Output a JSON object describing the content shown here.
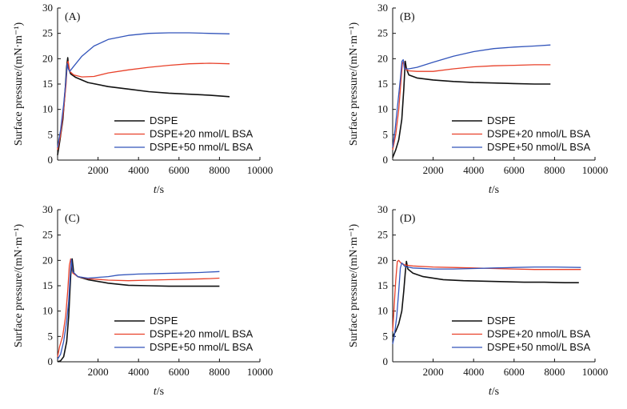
{
  "chart_data": [
    {
      "type": "line",
      "panel": "(A)",
      "xlabel": "t/s",
      "xlabel_italic": "t",
      "xlabel_unit": "/s",
      "ylabel": "Surface pressure/(mN·m⁻¹)",
      "xlim": [
        0,
        10000
      ],
      "ylim": [
        0,
        30
      ],
      "xticks": [
        0,
        2000,
        4000,
        6000,
        8000,
        10000
      ],
      "yticks": [
        0,
        5,
        10,
        15,
        20,
        25,
        30
      ],
      "xtick_labels": [
        "2000",
        "4000",
        "6000",
        "8000",
        "10000"
      ],
      "ytick_labels": [
        "0",
        "5",
        "10",
        "15",
        "20",
        "25",
        "30"
      ],
      "legend_position": "bottom-right",
      "series": [
        {
          "name": "DSPE",
          "color": "#111111",
          "x": [
            0,
            120,
            260,
            380,
            450,
            500,
            550,
            650,
            900,
            1500,
            2500,
            3500,
            4500,
            5500,
            6500,
            7500,
            8500
          ],
          "y": [
            1,
            4,
            8,
            14,
            18.5,
            20.2,
            18,
            17,
            16.3,
            15.3,
            14.5,
            14,
            13.5,
            13.2,
            13,
            12.8,
            12.5
          ]
        },
        {
          "name": "DSPE+20 nmol/L BSA",
          "color": "#e8412a",
          "x": [
            0,
            150,
            300,
            420,
            480,
            520,
            600,
            800,
            1200,
            1800,
            2500,
            3500,
            4500,
            5500,
            6500,
            7500,
            8500
          ],
          "y": [
            2,
            5,
            10,
            15,
            19,
            19.5,
            17.5,
            16.8,
            16.4,
            16.5,
            17.2,
            17.8,
            18.3,
            18.7,
            19,
            19.1,
            19
          ]
        },
        {
          "name": "DSPE+50 nmol/L BSA",
          "color": "#3355bb",
          "x": [
            0,
            150,
            300,
            420,
            480,
            530,
            600,
            800,
            1200,
            1800,
            2500,
            3500,
            4500,
            5500,
            6500,
            7500,
            8500
          ],
          "y": [
            2.5,
            6,
            11,
            16,
            19,
            18,
            17.5,
            18.5,
            20.5,
            22.5,
            23.8,
            24.6,
            25,
            25.1,
            25.1,
            25,
            24.9
          ]
        }
      ]
    },
    {
      "type": "line",
      "panel": "(B)",
      "xlabel": "t/s",
      "xlabel_italic": "t",
      "xlabel_unit": "/s",
      "ylabel": "Surface pressure/(mN·m⁻¹)",
      "xlim": [
        0,
        10000
      ],
      "ylim": [
        0,
        30
      ],
      "xticks": [
        0,
        2000,
        4000,
        6000,
        8000,
        10000
      ],
      "yticks": [
        0,
        5,
        10,
        15,
        20,
        25,
        30
      ],
      "xtick_labels": [
        "2000",
        "4000",
        "6000",
        "8000",
        "10000"
      ],
      "ytick_labels": [
        "0",
        "5",
        "10",
        "15",
        "20",
        "25",
        "30"
      ],
      "legend_position": "bottom-right",
      "series": [
        {
          "name": "DSPE",
          "color": "#111111",
          "x": [
            0,
            150,
            300,
            450,
            550,
            620,
            680,
            800,
            1200,
            2000,
            3000,
            4000,
            5000,
            6000,
            7000,
            7800
          ],
          "y": [
            0.5,
            2,
            4,
            8,
            14,
            19.5,
            18,
            16.8,
            16.2,
            15.8,
            15.5,
            15.3,
            15.2,
            15.1,
            15,
            15
          ]
        },
        {
          "name": "DSPE+20 nmol/L BSA",
          "color": "#e8412a",
          "x": [
            0,
            150,
            300,
            400,
            480,
            540,
            600,
            800,
            1200,
            2000,
            3000,
            4000,
            5000,
            6000,
            7000,
            7800
          ],
          "y": [
            2,
            5,
            10,
            15,
            19,
            19.5,
            18,
            17.6,
            17.5,
            17.5,
            18,
            18.4,
            18.6,
            18.7,
            18.8,
            18.8
          ]
        },
        {
          "name": "DSPE+50 nmol/L BSA",
          "color": "#3355bb",
          "x": [
            0,
            120,
            250,
            380,
            460,
            520,
            580,
            800,
            1200,
            2000,
            3000,
            4000,
            5000,
            6000,
            7000,
            7800
          ],
          "y": [
            2.5,
            6,
            11,
            16,
            19.5,
            19.8,
            18,
            18,
            18.3,
            19.3,
            20.5,
            21.4,
            22,
            22.3,
            22.5,
            22.7
          ]
        }
      ]
    },
    {
      "type": "line",
      "panel": "(C)",
      "xlabel": "t/s",
      "xlabel_italic": "t",
      "xlabel_unit": "/s",
      "ylabel": "Surface pressure/(mN·m⁻¹)",
      "xlim": [
        0,
        10000
      ],
      "ylim": [
        0,
        30
      ],
      "xticks": [
        0,
        2000,
        4000,
        6000,
        8000,
        10000
      ],
      "yticks": [
        0,
        5,
        10,
        15,
        20,
        25,
        30
      ],
      "xtick_labels": [
        "2000",
        "4000",
        "6000",
        "8000",
        "10000"
      ],
      "ytick_labels": [
        "0",
        "5",
        "10",
        "15",
        "20",
        "25",
        "30"
      ],
      "legend_position": "bottom-right",
      "series": [
        {
          "name": "DSPE",
          "color": "#111111",
          "x": [
            0,
            150,
            300,
            450,
            550,
            650,
            720,
            800,
            1000,
            1500,
            2500,
            3500,
            4500,
            5500,
            6500,
            7500,
            8000
          ],
          "y": [
            0,
            0.2,
            1,
            4,
            9,
            17,
            20.3,
            17.5,
            16.8,
            16.2,
            15.5,
            15.1,
            15,
            14.9,
            14.9,
            14.9,
            14.9
          ]
        },
        {
          "name": "DSPE+20 nmol/L BSA",
          "color": "#e8412a",
          "x": [
            0,
            100,
            250,
            400,
            500,
            580,
            650,
            750,
            1000,
            1500,
            2500,
            3500,
            4500,
            5500,
            6500,
            7500,
            8000
          ],
          "y": [
            1,
            3,
            5,
            9,
            14,
            19,
            20.3,
            17.5,
            16.8,
            16.4,
            16.1,
            16,
            16.1,
            16.2,
            16.3,
            16.4,
            16.5
          ]
        },
        {
          "name": "DSPE+50 nmol/L BSA",
          "color": "#3355bb",
          "x": [
            0,
            150,
            300,
            450,
            550,
            620,
            680,
            750,
            1000,
            1500,
            2500,
            3000,
            4000,
            5000,
            6000,
            7000,
            8000
          ],
          "y": [
            0.5,
            1.5,
            4,
            8,
            12,
            17,
            20.2,
            17.8,
            16.8,
            16.5,
            16.8,
            17.1,
            17.3,
            17.4,
            17.5,
            17.6,
            17.8
          ]
        }
      ]
    },
    {
      "type": "line",
      "panel": "(D)",
      "xlabel": "t/s",
      "xlabel_italic": "t",
      "xlabel_unit": "/s",
      "ylabel": "Surface pressure/(mN·m⁻¹)",
      "xlim": [
        0,
        10000
      ],
      "ylim": [
        0,
        30
      ],
      "xticks": [
        0,
        2000,
        4000,
        6000,
        8000,
        10000
      ],
      "yticks": [
        0,
        5,
        10,
        15,
        20,
        25,
        30
      ],
      "xtick_labels": [
        "2000",
        "4000",
        "6000",
        "8000",
        "10000"
      ],
      "ytick_labels": [
        "0",
        "5",
        "10",
        "15",
        "20",
        "25",
        "30"
      ],
      "legend_position": "bottom-right",
      "series": [
        {
          "name": "DSPE",
          "color": "#111111",
          "x": [
            0,
            150,
            300,
            450,
            550,
            620,
            680,
            750,
            1000,
            1500,
            2500,
            3500,
            4500,
            5500,
            6500,
            7500,
            8500,
            9200
          ],
          "y": [
            5,
            6,
            7.5,
            10,
            14,
            17.5,
            19.8,
            18.3,
            17.5,
            16.8,
            16.2,
            16,
            15.9,
            15.8,
            15.7,
            15.7,
            15.6,
            15.6
          ]
        },
        {
          "name": "DSPE+20 nmol/L BSA",
          "color": "#e8412a",
          "x": [
            0,
            60,
            150,
            230,
            300,
            400,
            600,
            1000,
            2000,
            3000,
            4000,
            5000,
            6000,
            7000,
            8000,
            9300
          ],
          "y": [
            6,
            10,
            16,
            19.8,
            20,
            19.5,
            19.1,
            18.9,
            18.7,
            18.6,
            18.5,
            18.4,
            18.3,
            18.2,
            18.2,
            18.2
          ]
        },
        {
          "name": "DSPE+50 nmol/L BSA",
          "color": "#3355bb",
          "x": [
            0,
            80,
            200,
            300,
            380,
            450,
            600,
            1000,
            2000,
            3000,
            4000,
            5000,
            6000,
            7000,
            8000,
            9300
          ],
          "y": [
            3.5,
            5,
            9,
            14,
            18.5,
            19.5,
            18.8,
            18.5,
            18.3,
            18.3,
            18.4,
            18.5,
            18.6,
            18.7,
            18.7,
            18.6
          ]
        }
      ]
    }
  ]
}
